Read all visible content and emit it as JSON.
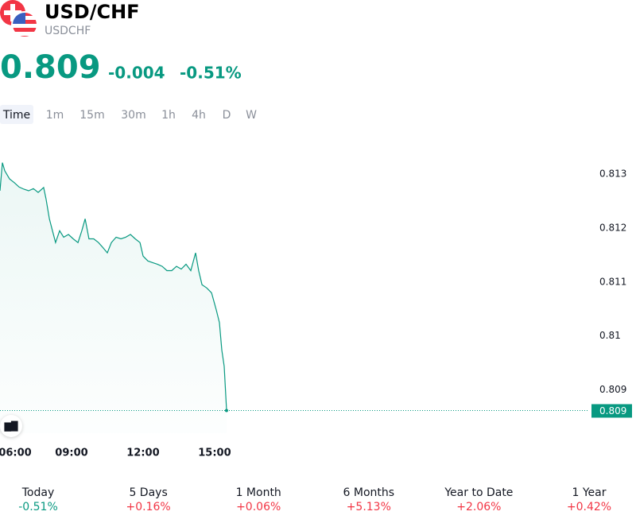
{
  "header": {
    "title": "USD/CHF",
    "symbol": "USDCHF",
    "price": "0.809",
    "change": "-0.004",
    "change_percent": "-0.51%",
    "color": "#089981"
  },
  "timeframes": {
    "items": [
      "Time",
      "1m",
      "15m",
      "30m",
      "1h",
      "4h",
      "D",
      "W"
    ],
    "selected": 0
  },
  "chart_data": {
    "type": "line",
    "color": "#089981",
    "series": [
      {
        "name": "USDCHF",
        "x": [
          6.0,
          6.1,
          6.2,
          6.4,
          6.6,
          6.8,
          7.0,
          7.2,
          7.4,
          7.6,
          7.83,
          7.93,
          8.07,
          8.2,
          8.33,
          8.5,
          8.67,
          8.87,
          9.07,
          9.27,
          9.43,
          9.57,
          9.73,
          9.93,
          10.13,
          10.33,
          10.5,
          10.67,
          10.87,
          11.07,
          11.27,
          11.47,
          11.67,
          11.87,
          12.0,
          12.2,
          12.4,
          12.6,
          12.8,
          13.0,
          13.2,
          13.4,
          13.6,
          13.8,
          14.0,
          14.2,
          14.33,
          14.47,
          14.67,
          14.87,
          15.07,
          15.2,
          15.3,
          15.4,
          15.5
        ],
        "values": [
          0.81269,
          0.81321,
          0.81306,
          0.81291,
          0.81284,
          0.81276,
          0.81272,
          0.81269,
          0.81273,
          0.81266,
          0.81275,
          0.81254,
          0.81217,
          0.81195,
          0.81173,
          0.81195,
          0.81183,
          0.81188,
          0.8118,
          0.81173,
          0.81195,
          0.81217,
          0.8118,
          0.8118,
          0.81173,
          0.81163,
          0.81154,
          0.81173,
          0.81183,
          0.8118,
          0.81183,
          0.81188,
          0.8118,
          0.81173,
          0.81148,
          0.81139,
          0.81136,
          0.81133,
          0.81129,
          0.81121,
          0.81121,
          0.81129,
          0.81124,
          0.81133,
          0.81121,
          0.81154,
          0.81121,
          0.81095,
          0.81089,
          0.8108,
          0.81048,
          0.81025,
          0.80974,
          0.80944,
          0.80862
        ]
      }
    ],
    "last_value_label": "0.809",
    "xlim": [
      6,
      30.67
    ],
    "xticks": [
      {
        "value": 6,
        "label": "06:00"
      },
      {
        "value": 9,
        "label": "09:00"
      },
      {
        "value": 12,
        "label": "12:00"
      },
      {
        "value": 15,
        "label": "15:00"
      }
    ],
    "ylim": [
      0.8082,
      0.8135
    ],
    "yticks": [
      0.809,
      0.81,
      0.811,
      0.812,
      0.813
    ]
  },
  "periods": [
    {
      "label": "Today",
      "change": "-0.51%",
      "color": "#089981"
    },
    {
      "label": "5 Days",
      "change": "+0.16%",
      "color": "#f23645"
    },
    {
      "label": "1 Month",
      "change": "+0.06%",
      "color": "#f23645"
    },
    {
      "label": "6 Months",
      "change": "+5.13%",
      "color": "#f23645"
    },
    {
      "label": "Year to Date",
      "change": "+2.06%",
      "color": "#f23645"
    },
    {
      "label": "1 Year",
      "change": "+0.42%",
      "color": "#f23645"
    }
  ]
}
